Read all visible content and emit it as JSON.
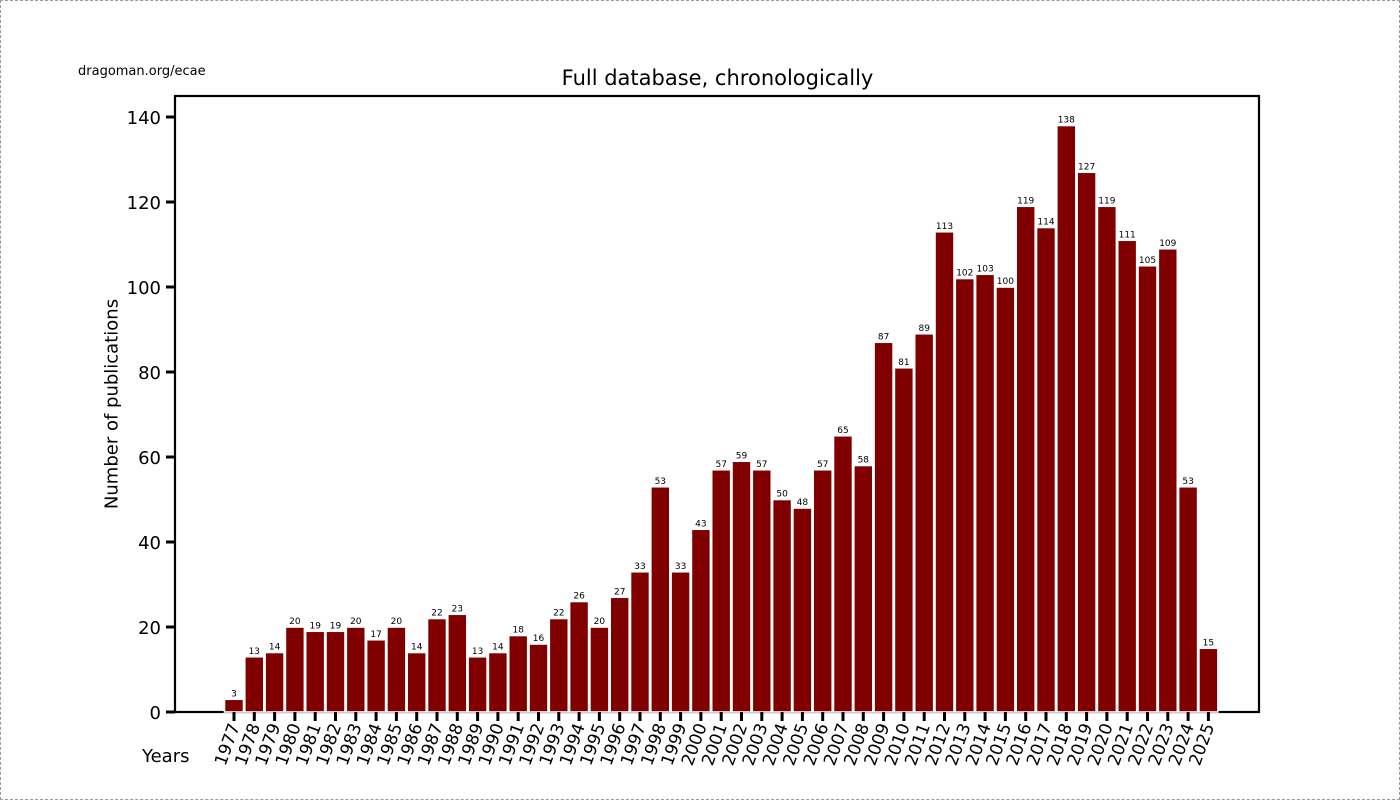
{
  "source_label": "dragoman.org/ecae",
  "chart_data": {
    "type": "bar",
    "title": "Full database, chronologically",
    "xlabel": "Years",
    "ylabel": "Number of publications",
    "ylim": [
      0,
      145
    ],
    "yticks": [
      0,
      20,
      40,
      60,
      80,
      100,
      120,
      140
    ],
    "grid": false,
    "bar_color": "#800000",
    "categories": [
      "1977",
      "1978",
      "1979",
      "1980",
      "1981",
      "1982",
      "1983",
      "1984",
      "1985",
      "1986",
      "1987",
      "1988",
      "1989",
      "1990",
      "1991",
      "1992",
      "1993",
      "1994",
      "1995",
      "1996",
      "1997",
      "1998",
      "1999",
      "2000",
      "2001",
      "2002",
      "2003",
      "2004",
      "2005",
      "2006",
      "2007",
      "2008",
      "2009",
      "2010",
      "2011",
      "2012",
      "2013",
      "2014",
      "2015",
      "2016",
      "2017",
      "2018",
      "2019",
      "2020",
      "2021",
      "2022",
      "2023",
      "2024",
      "2025"
    ],
    "values": [
      3,
      13,
      14,
      20,
      19,
      19,
      20,
      17,
      20,
      14,
      22,
      23,
      13,
      14,
      18,
      16,
      22,
      26,
      20,
      27,
      33,
      53,
      33,
      43,
      57,
      59,
      57,
      50,
      48,
      57,
      65,
      58,
      87,
      81,
      89,
      113,
      102,
      103,
      100,
      119,
      114,
      138,
      127,
      119,
      111,
      105,
      109,
      53,
      15
    ]
  }
}
